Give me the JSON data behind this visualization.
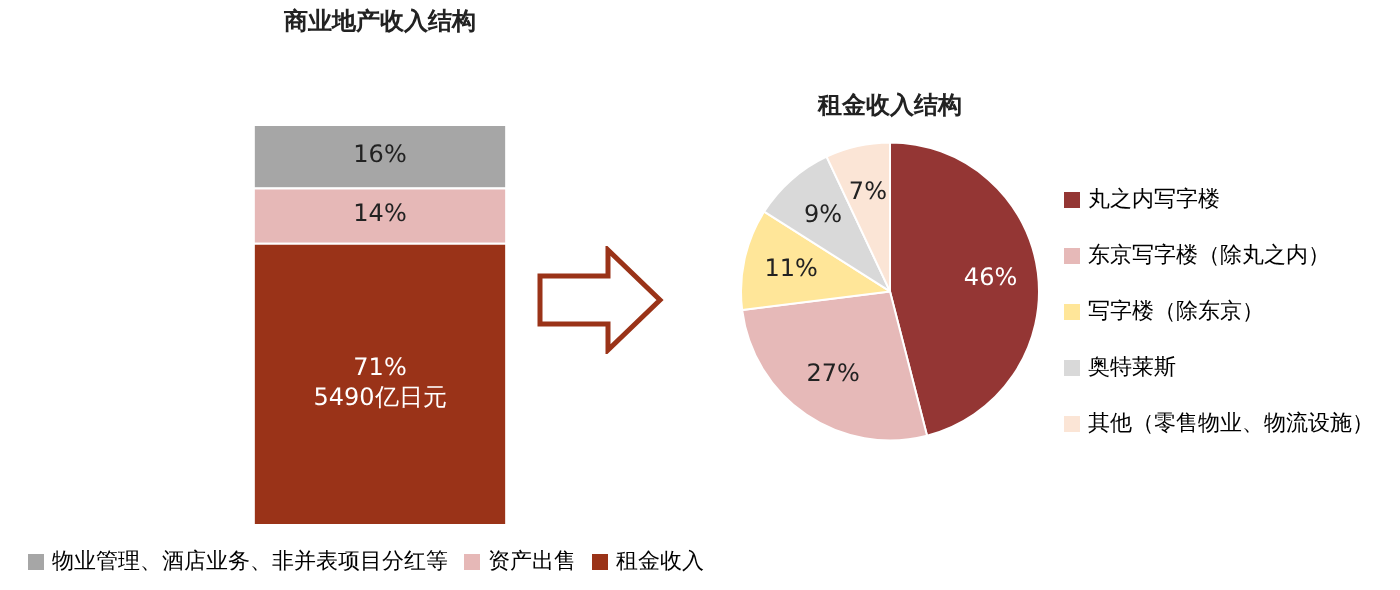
{
  "chart_data": [
    {
      "type": "bar",
      "title": "商业地产收入结构",
      "categories": [
        null
      ],
      "stacked": true,
      "legend": "bottom",
      "tick_labels": false,
      "series": [
        {
          "name": "租金收入",
          "color": "#9a3318",
          "values": [
            71
          ],
          "value_labels": [
            "71%\n5490亿日元"
          ]
        },
        {
          "name": "资产出售",
          "color": "#e6b8b7",
          "values": [
            14
          ],
          "value_labels": [
            "14%"
          ]
        },
        {
          "name": "物业管理、酒店业务、非并表项目分红等",
          "color": "#a6a6a6",
          "values": [
            16
          ],
          "value_labels": [
            "16%"
          ]
        }
      ]
    },
    {
      "type": "pie",
      "title": "租金收入结构",
      "legend": "right",
      "categories": [
        "丸之内写字楼",
        "东京写字楼（除丸之内）",
        "写字楼（除东京）",
        "奥特莱斯",
        "其他（零售物业、物流设施）"
      ],
      "values": [
        46,
        27,
        11,
        9,
        7
      ],
      "value_labels": [
        "46%",
        "27%",
        "11%",
        "9%",
        "7%"
      ],
      "colors": [
        "#943634",
        "#e6b9b8",
        "#ffe699",
        "#d9d9d9",
        "#fbe5d6"
      ]
    }
  ]
}
